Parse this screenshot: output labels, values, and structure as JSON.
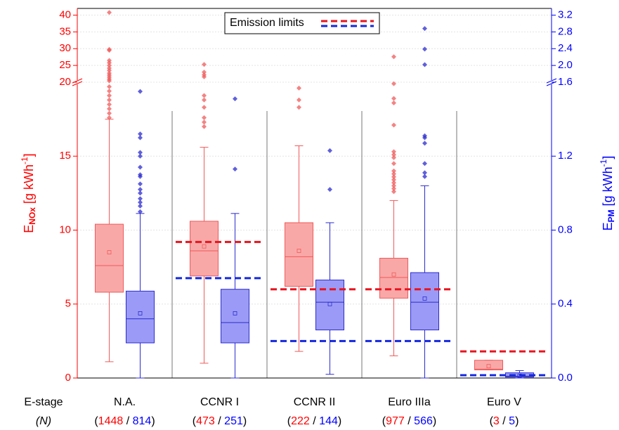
{
  "chart_data": {
    "type": "box",
    "categories": [
      "N.A.",
      "CCNR I",
      "CCNR II",
      "Euro IIIa",
      "Euro V"
    ],
    "xlabel": "E-stage",
    "nlabel": "(N)",
    "count_format": {
      "open": "(",
      "sep": " / ",
      "close": ")"
    },
    "ylabel": {
      "main": "E",
      "sub": "NOx",
      "unit": " [g kWh",
      "sup": "-1",
      "end": "]"
    },
    "y2label": {
      "main": "E",
      "sub": "PM",
      "unit": " [g kWh",
      "sup": "-1",
      "end": "]"
    },
    "ylim": [
      0,
      42
    ],
    "ybreak": 20,
    "yticks": [
      0,
      5,
      10,
      15,
      20,
      25,
      30,
      35,
      40
    ],
    "y2lim": [
      0,
      3.36
    ],
    "y2break": 1.6,
    "y2ticks": [
      {
        "value": 0,
        "label": "0.0"
      },
      0.4,
      0.8,
      1.2,
      1.6,
      {
        "value": 2,
        "label": "2.0"
      },
      2.4,
      2.8,
      3.2
    ],
    "grid": true,
    "legend": "Emission limits",
    "series": [
      {
        "axis": "y",
        "color": "#ff0000",
        "fill": "#f9a8a8",
        "stroke": "#f05a5a",
        "n": [
          1448,
          473,
          222,
          977,
          3
        ],
        "low": [
          1.1,
          1.0,
          1.8,
          1.5,
          0.55
        ],
        "q1": [
          5.8,
          6.9,
          6.2,
          5.4,
          0.55
        ],
        "median": [
          7.6,
          8.6,
          8.2,
          6.8,
          0.6
        ],
        "q3": [
          10.4,
          10.6,
          10.5,
          8.1,
          1.2
        ],
        "high": [
          17.5,
          15.6,
          15.7,
          12.0,
          1.2
        ],
        "mean": [
          8.5,
          8.9,
          8.6,
          7.0,
          0.8
        ],
        "outliers": [
          [
            17.6,
            17.9,
            18.2,
            18.5,
            18.8,
            19.1,
            19.4,
            19.7,
            20.4,
            20.9,
            21.5,
            22.1,
            22.7,
            23.5,
            24.2,
            25.0,
            25.8,
            26.5,
            29.5,
            29.8,
            40.8
          ],
          [
            17.0,
            17.3,
            17.6,
            18.3,
            18.8,
            19.1,
            21.6,
            22.2,
            23.0,
            25.3
          ],
          [
            18.3,
            18.8,
            19.6
          ],
          [
            12.6,
            12.8,
            13.0,
            13.2,
            13.4,
            13.6,
            13.8,
            14.0,
            14.5,
            14.9,
            15.1,
            15.3,
            17.1,
            18.6,
            18.9,
            19.9,
            27.6
          ],
          []
        ]
      },
      {
        "axis": "y2",
        "color": "#0000ff",
        "fill": "#9b9bf7",
        "stroke": "#2b2bd0",
        "n": [
          814,
          251,
          144,
          566,
          5
        ],
        "low": [
          0,
          0,
          0.02,
          0,
          0
        ],
        "q1": [
          0.19,
          0.19,
          0.26,
          0.26,
          0.005
        ],
        "median": [
          0.32,
          0.3,
          0.41,
          0.41,
          0.01
        ],
        "q3": [
          0.47,
          0.48,
          0.53,
          0.57,
          0.028
        ],
        "high": [
          0.89,
          0.89,
          0.84,
          1.04,
          0.04
        ],
        "mean": [
          0.35,
          0.35,
          0.4,
          0.43,
          0.012
        ],
        "outliers": [
          [
            0.9,
            0.93,
            0.95,
            0.97,
            1.0,
            1.02,
            1.05,
            1.09,
            1.1,
            1.14,
            1.2,
            1.22,
            1.3,
            1.32,
            1.55
          ],
          [
            1.13,
            1.51
          ],
          [
            1.02,
            1.23
          ],
          [
            1.09,
            1.11,
            1.16,
            1.27,
            1.3,
            1.31,
            2.02,
            2.39,
            2.88
          ],
          []
        ]
      }
    ],
    "limits": [
      {
        "axis": "y",
        "color": "#e8141e",
        "values": [
          null,
          9.2,
          6.0,
          6.0,
          1.8
        ]
      },
      {
        "axis": "y2",
        "color": "#1428e0",
        "values": [
          null,
          0.54,
          0.2,
          0.2,
          0.015
        ]
      }
    ]
  }
}
